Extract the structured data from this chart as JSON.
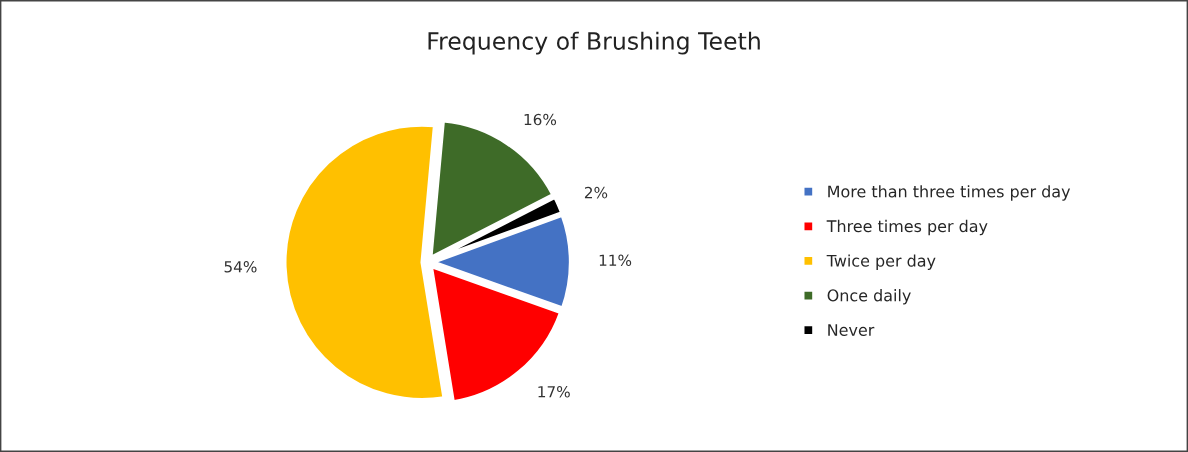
{
  "chart_data": {
    "type": "pie",
    "title": "Frequency of Brushing Teeth",
    "categories": [
      "More than three times per day",
      "Three times per day",
      "Twice per day",
      "Once daily",
      "Never"
    ],
    "values": [
      11,
      17,
      54,
      16,
      2
    ],
    "colors": [
      "#4472c4",
      "#ff0000",
      "#ffc000",
      "#3e6b28",
      "#000000"
    ],
    "value_labels": [
      "11%",
      "17%",
      "54%",
      "16%",
      "2%"
    ],
    "legend": "right"
  }
}
